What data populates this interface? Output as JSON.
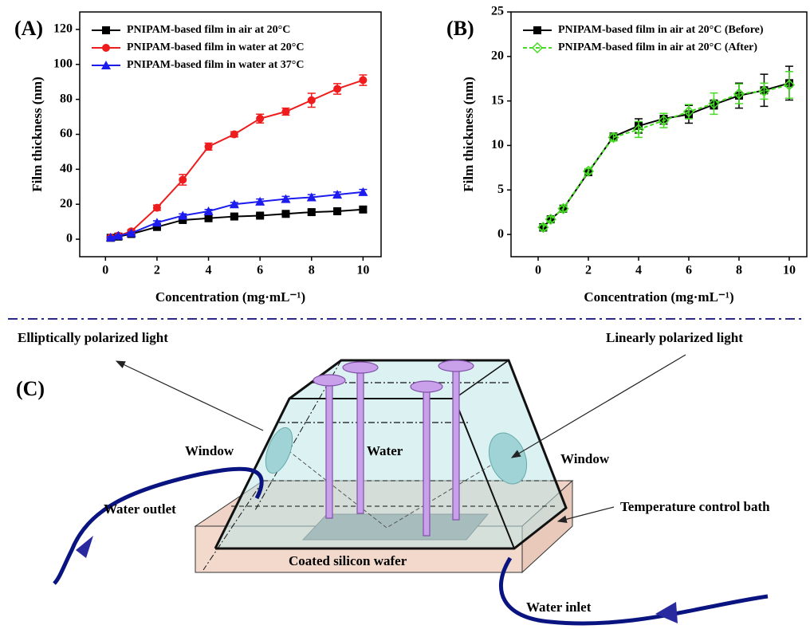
{
  "chart_data": [
    {
      "type": "line",
      "panel_label": "(A)",
      "y_label": "Film thickness (nm)",
      "x_label": "Concentration (mg·mL⁻¹)",
      "x": [
        0.2,
        0.5,
        1,
        2,
        3,
        4,
        5,
        6,
        7,
        8,
        9,
        10
      ],
      "xlim": [
        -1,
        10.7
      ],
      "ylim": [
        -10,
        130
      ],
      "xticks": [
        0,
        2,
        4,
        6,
        8,
        10
      ],
      "yticks": [
        0,
        20,
        40,
        60,
        80,
        100,
        120
      ],
      "series": [
        {
          "name": "PNIPAM-based film in air at 20°C",
          "color": "#000000",
          "marker": "square",
          "linestyle": "solid",
          "values": [
            0.8,
            1.5,
            3,
            7,
            11,
            12,
            13,
            13.5,
            14.5,
            15.5,
            16,
            17
          ],
          "errors": [
            0.5,
            0.5,
            0.5,
            1,
            1,
            1,
            1,
            1,
            1,
            1.5,
            1.5,
            1.5
          ]
        },
        {
          "name": "PNIPAM-based film in water at 20°C",
          "color": "#ee1c1c",
          "marker": "circle",
          "linestyle": "solid",
          "values": [
            1,
            2,
            4.5,
            18,
            34,
            53,
            60,
            69,
            73,
            79.5,
            86,
            91
          ],
          "errors": [
            0.5,
            0.5,
            1,
            1.5,
            3,
            2,
            1.5,
            2.5,
            2,
            4,
            3,
            3
          ]
        },
        {
          "name": "PNIPAM-based film in water at 37°C",
          "color": "#1c1cee",
          "marker": "triangle",
          "linestyle": "solid",
          "values": [
            1,
            2,
            3.5,
            9.5,
            13.5,
            16,
            20,
            21.5,
            23,
            24,
            25.5,
            27
          ],
          "errors": [
            0.5,
            0.5,
            0.5,
            1,
            1,
            1,
            1,
            1.5,
            1.5,
            1.5,
            1.5,
            1.5
          ]
        }
      ]
    },
    {
      "type": "line",
      "panel_label": "(B)",
      "y_label": "Film thickness (nm)",
      "x_label": "Concentration (mg·mL⁻¹)",
      "x": [
        0.2,
        0.5,
        1,
        2,
        3,
        4,
        5,
        6,
        7,
        8,
        9,
        10
      ],
      "xlim": [
        -1.08,
        10.7
      ],
      "ylim": [
        -2.5,
        25
      ],
      "xticks": [
        0,
        2,
        4,
        6,
        8,
        10
      ],
      "yticks": [
        0,
        5,
        10,
        15,
        20,
        25
      ],
      "series": [
        {
          "name": "PNIPAM-based film in air at 20°C (Before)",
          "color": "#000000",
          "marker": "square",
          "linestyle": "solid",
          "values": [
            0.8,
            1.7,
            2.9,
            7,
            11,
            12.2,
            13,
            13.5,
            14.6,
            15.6,
            16.2,
            17
          ],
          "errors": [
            0.4,
            0.3,
            0.3,
            0.3,
            0.3,
            0.8,
            0.6,
            1,
            0.5,
            1.4,
            1.8,
            1.9
          ]
        },
        {
          "name": "PNIPAM-based film in air at 20°C (After)",
          "color": "#44dd22",
          "marker": "diamond",
          "linestyle": "dashed",
          "values": [
            0.8,
            1.7,
            2.9,
            7.1,
            10.9,
            11.8,
            12.8,
            13.8,
            14.7,
            15.8,
            16.1,
            16.8
          ],
          "errors": [
            0.3,
            0.3,
            0.3,
            0.3,
            0.4,
            0.9,
            0.8,
            0.8,
            1.2,
            1.1,
            0.9,
            1.5
          ]
        }
      ]
    }
  ],
  "diagram": {
    "panel_label": "(C)",
    "labels": [
      "Elliptically polarized light",
      "Linearly polarized light",
      "Window",
      "Water",
      "Window",
      "Water outlet",
      "Temperature control bath",
      "Coated silicon wafer",
      "Water inlet"
    ]
  }
}
